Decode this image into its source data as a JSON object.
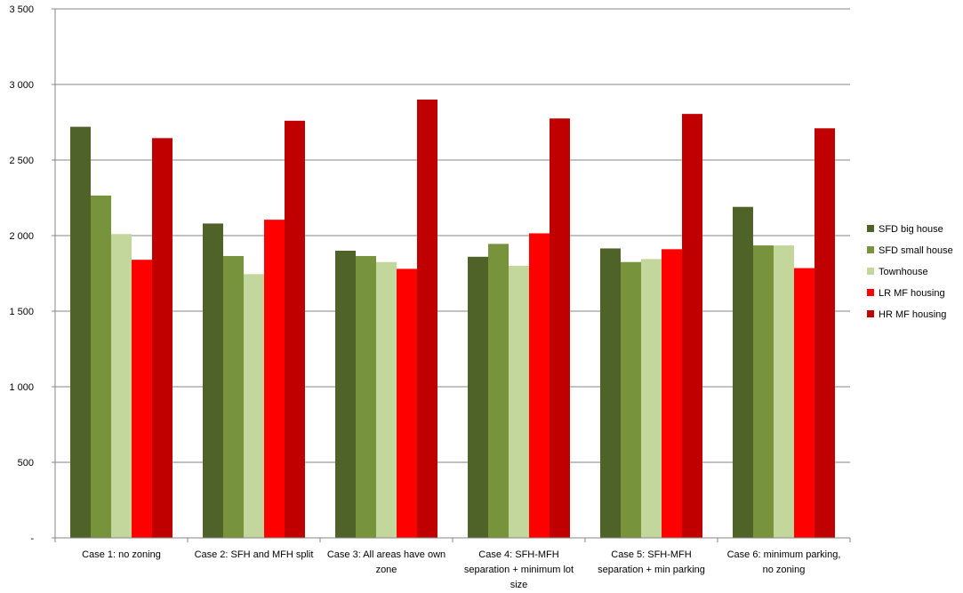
{
  "chart_data": {
    "type": "bar",
    "title": "",
    "xlabel": "",
    "ylabel": "",
    "ylim": [
      0,
      3500
    ],
    "yticks": [
      {
        "value": 0,
        "label": "-"
      },
      {
        "value": 500,
        "label": "500"
      },
      {
        "value": 1000,
        "label": "1 000"
      },
      {
        "value": 1500,
        "label": "1 500"
      },
      {
        "value": 2000,
        "label": "2 000"
      },
      {
        "value": 2500,
        "label": "2 500"
      },
      {
        "value": 3000,
        "label": "3 000"
      },
      {
        "value": 3500,
        "label": "3 500"
      }
    ],
    "grid": true,
    "legend_position": "right",
    "categories": [
      [
        "Case 1: no zoning"
      ],
      [
        "Case 2: SFH and MFH split"
      ],
      [
        "Case 3: All areas have own",
        "zone"
      ],
      [
        "Case 4: SFH-MFH",
        "separation + minimum lot",
        "size"
      ],
      [
        "Case 5: SFH-MFH",
        "separation + min parking"
      ],
      [
        "Case 6: minimum parking,",
        "no zoning"
      ]
    ],
    "series": [
      {
        "name": "SFD big house",
        "color": "#4f6228",
        "values": [
          2720,
          2080,
          1900,
          1860,
          1915,
          2190
        ]
      },
      {
        "name": "SFD small house",
        "color": "#77933c",
        "values": [
          2265,
          1865,
          1865,
          1945,
          1825,
          1935
        ]
      },
      {
        "name": "Townhouse",
        "color": "#c3d69b",
        "values": [
          2010,
          1745,
          1825,
          1800,
          1845,
          1935
        ]
      },
      {
        "name": "LR MF housing",
        "color": "#ff0000",
        "values": [
          1840,
          2105,
          1780,
          2015,
          1910,
          1785
        ]
      },
      {
        "name": "HR MF housing",
        "color": "#c00000",
        "values": [
          2645,
          2760,
          2900,
          2775,
          2805,
          2710
        ]
      }
    ]
  }
}
